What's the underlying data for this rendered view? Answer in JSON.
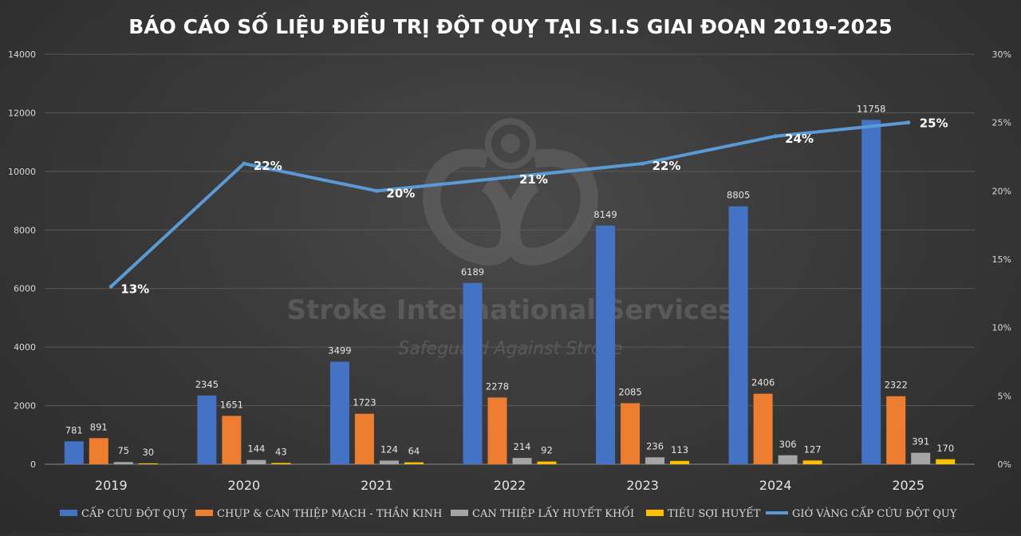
{
  "chart_data": {
    "type": "bar",
    "title": "BÁO CÁO SỐ LIỆU ĐIỀU TRỊ ĐỘT QUỴ TẠI S.I.S GIAI ĐOẠN 2019-2025",
    "categories": [
      "2019",
      "2020",
      "2021",
      "2022",
      "2023",
      "2024",
      "2025"
    ],
    "series": [
      {
        "name": "CẤP CỨU ĐỘT QUỴ",
        "type": "bar",
        "axis": "left",
        "color": "#4472c4",
        "values": [
          781,
          2345,
          3499,
          6189,
          8149,
          8805,
          11758
        ]
      },
      {
        "name": "CHỤP & CAN THIỆP MẠCH - THẦN KINH",
        "type": "bar",
        "axis": "left",
        "color": "#ed7d31",
        "values": [
          891,
          1651,
          1723,
          2278,
          2085,
          2406,
          2322
        ]
      },
      {
        "name": "CAN THIỆP LẤY HUYẾT KHỐI",
        "type": "bar",
        "axis": "left",
        "color": "#a5a5a5",
        "values": [
          75,
          144,
          124,
          214,
          236,
          306,
          391
        ]
      },
      {
        "name": "TIÊU SỢI HUYẾT",
        "type": "bar",
        "axis": "left",
        "color": "#ffc000",
        "values": [
          30,
          43,
          64,
          92,
          113,
          127,
          170
        ]
      },
      {
        "name": "GIỜ VÀNG CẤP CỨU ĐỘT QUỴ",
        "type": "line",
        "axis": "right",
        "color": "#5b9bd5",
        "values": [
          13,
          22,
          20,
          21,
          22,
          24,
          25
        ],
        "labels": [
          "13%",
          "22%",
          "20%",
          "21%",
          "22%",
          "24%",
          "25%"
        ]
      }
    ],
    "ylim_left": [
      0,
      14000
    ],
    "yticks_left": [
      "0",
      "2000",
      "4000",
      "6000",
      "8000",
      "10000",
      "12000",
      "14000"
    ],
    "ylim_right": [
      0,
      30
    ],
    "yticks_right": [
      "0%",
      "5%",
      "10%",
      "15%",
      "20%",
      "25%",
      "30%"
    ],
    "grid": true,
    "legend_position": "bottom"
  },
  "watermark": {
    "name": "Stroke International Services",
    "tagline": "Safeguard Against Stroke"
  }
}
